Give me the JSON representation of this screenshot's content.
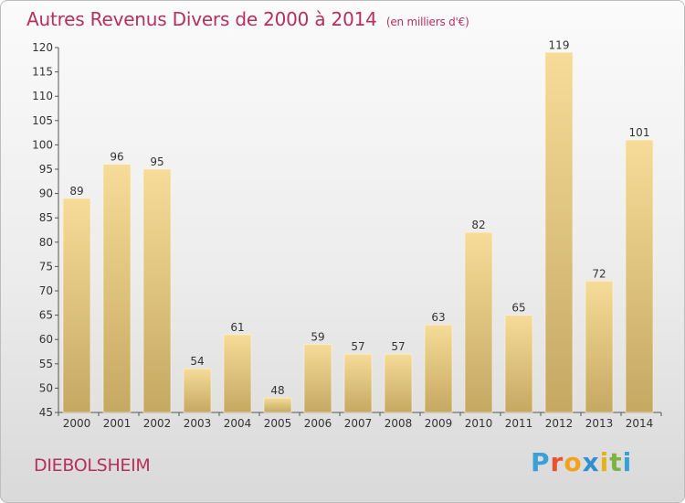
{
  "header": {
    "title": "Autres Revenus Divers de 2000 à 2014",
    "unit": "(en milliers d'€)"
  },
  "footer": {
    "city": "DIEBOLSHEIM",
    "logo_letters": [
      "P",
      "r",
      "o",
      "x",
      "i",
      "t",
      "i"
    ]
  },
  "colors": {
    "title": "#b5305a",
    "bar_light": "#f6dc98",
    "bar_dark": "#c5a862"
  },
  "chart_data": {
    "type": "bar",
    "title": "Autres Revenus Divers de 2000 à 2014",
    "subtitle": "(en milliers d'€)",
    "xlabel": "",
    "ylabel": "",
    "categories": [
      "2000",
      "2001",
      "2002",
      "2003",
      "2004",
      "2005",
      "2006",
      "2007",
      "2008",
      "2009",
      "2010",
      "2011",
      "2012",
      "2013",
      "2014"
    ],
    "values": [
      89,
      96,
      95,
      54,
      61,
      48,
      59,
      57,
      57,
      63,
      82,
      65,
      119,
      72,
      101
    ],
    "ylim": [
      45,
      120
    ],
    "yticks": [
      45,
      50,
      55,
      60,
      65,
      70,
      75,
      80,
      85,
      90,
      95,
      100,
      105,
      110,
      115,
      120
    ],
    "grid": false,
    "legend": "none"
  }
}
